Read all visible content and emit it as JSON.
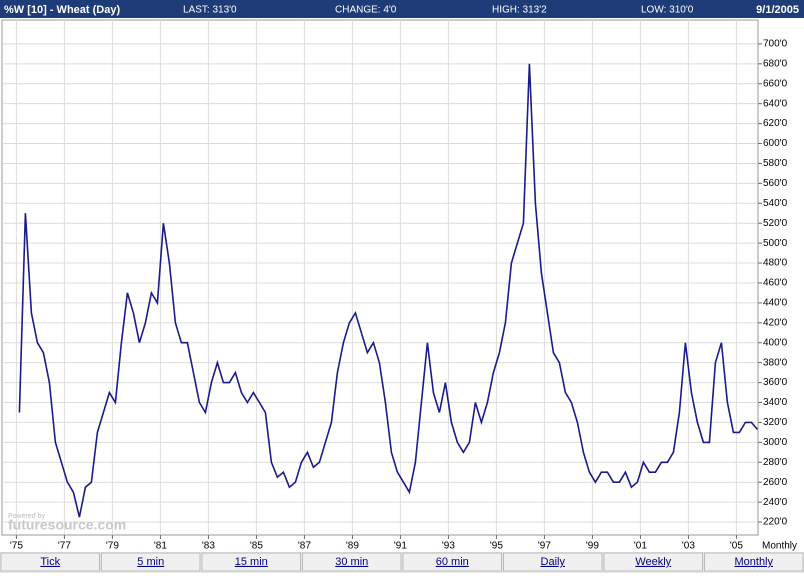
{
  "header": {
    "symbol": "%W [10] - Wheat (Day)",
    "last": "LAST: 313'0",
    "change": "CHANGE: 4'0",
    "high": "HIGH: 313'2",
    "low": "LOW: 310'0",
    "date": "9/1/2005"
  },
  "toolbar": {
    "buttons": [
      "Tick",
      "5 min",
      "15 min",
      "30 min",
      "60 min",
      "Daily",
      "Weekly",
      "Monthly"
    ]
  },
  "watermark": {
    "powered": "Powered by",
    "brand": "futuresource.com"
  },
  "chart_data": {
    "type": "line",
    "period_label": "Monthly",
    "grid": true,
    "y_axis_side": "right",
    "xlim": [
      1974.4,
      2005.9
    ],
    "ylim": [
      207,
      724
    ],
    "xticks": [
      {
        "value": 1975,
        "label": "'75"
      },
      {
        "value": 1977,
        "label": "'77"
      },
      {
        "value": 1979,
        "label": "'79"
      },
      {
        "value": 1981,
        "label": "'81"
      },
      {
        "value": 1983,
        "label": "'83"
      },
      {
        "value": 1985,
        "label": "'85"
      },
      {
        "value": 1987,
        "label": "'87"
      },
      {
        "value": 1989,
        "label": "'89"
      },
      {
        "value": 1991,
        "label": "'91"
      },
      {
        "value": 1993,
        "label": "'93"
      },
      {
        "value": 1995,
        "label": "'95"
      },
      {
        "value": 1997,
        "label": "'97"
      },
      {
        "value": 1999,
        "label": "'99"
      },
      {
        "value": 2001,
        "label": "'01"
      },
      {
        "value": 2003,
        "label": "'03"
      },
      {
        "value": 2005,
        "label": "'05"
      }
    ],
    "yticks": [
      {
        "value": 220,
        "label": "220'0"
      },
      {
        "value": 240,
        "label": "240'0"
      },
      {
        "value": 260,
        "label": "260'0"
      },
      {
        "value": 280,
        "label": "280'0"
      },
      {
        "value": 300,
        "label": "300'0"
      },
      {
        "value": 320,
        "label": "320'0"
      },
      {
        "value": 340,
        "label": "340'0"
      },
      {
        "value": 360,
        "label": "360'0"
      },
      {
        "value": 380,
        "label": "380'0"
      },
      {
        "value": 400,
        "label": "400'0"
      },
      {
        "value": 420,
        "label": "420'0"
      },
      {
        "value": 440,
        "label": "440'0"
      },
      {
        "value": 460,
        "label": "460'0"
      },
      {
        "value": 480,
        "label": "480'0"
      },
      {
        "value": 500,
        "label": "500'0"
      },
      {
        "value": 520,
        "label": "520'0"
      },
      {
        "value": 540,
        "label": "540'0"
      },
      {
        "value": 560,
        "label": "560'0"
      },
      {
        "value": 580,
        "label": "580'0"
      },
      {
        "value": 600,
        "label": "600'0"
      },
      {
        "value": 620,
        "label": "620'0"
      },
      {
        "value": 640,
        "label": "640'0"
      },
      {
        "value": 660,
        "label": "660'0"
      },
      {
        "value": 680,
        "label": "680'0"
      },
      {
        "value": 700,
        "label": "700'0"
      }
    ],
    "series": [
      {
        "name": "Wheat",
        "color": "#1a1a8c",
        "x": [
          1975.125,
          1975.375,
          1975.625,
          1975.875,
          1976.125,
          1976.375,
          1976.625,
          1976.875,
          1977.125,
          1977.375,
          1977.625,
          1977.875,
          1978.125,
          1978.375,
          1978.625,
          1978.875,
          1979.125,
          1979.375,
          1979.625,
          1979.875,
          1980.125,
          1980.375,
          1980.625,
          1980.875,
          1981.125,
          1981.375,
          1981.625,
          1981.875,
          1982.125,
          1982.375,
          1982.625,
          1982.875,
          1983.125,
          1983.375,
          1983.625,
          1983.875,
          1984.125,
          1984.375,
          1984.625,
          1984.875,
          1985.125,
          1985.375,
          1985.625,
          1985.875,
          1986.125,
          1986.375,
          1986.625,
          1986.875,
          1987.125,
          1987.375,
          1987.625,
          1987.875,
          1988.125,
          1988.375,
          1988.625,
          1988.875,
          1989.125,
          1989.375,
          1989.625,
          1989.875,
          1990.125,
          1990.375,
          1990.625,
          1990.875,
          1991.125,
          1991.375,
          1991.625,
          1991.875,
          1992.125,
          1992.375,
          1992.625,
          1992.875,
          1993.125,
          1993.375,
          1993.625,
          1993.875,
          1994.125,
          1994.375,
          1994.625,
          1994.875,
          1995.125,
          1995.375,
          1995.625,
          1995.875,
          1996.125,
          1996.375,
          1996.625,
          1996.875,
          1997.125,
          1997.375,
          1997.625,
          1997.875,
          1998.125,
          1998.375,
          1998.625,
          1998.875,
          1999.125,
          1999.375,
          1999.625,
          1999.875,
          2000.125,
          2000.375,
          2000.625,
          2000.875,
          2001.125,
          2001.375,
          2001.625,
          2001.875,
          2002.125,
          2002.375,
          2002.625,
          2002.875,
          2003.125,
          2003.375,
          2003.625,
          2003.875,
          2004.125,
          2004.375,
          2004.625,
          2004.875,
          2005.125,
          2005.375,
          2005.625,
          2005.875
        ],
        "values": [
          330,
          530,
          430,
          400,
          390,
          360,
          300,
          280,
          260,
          250,
          225,
          255,
          260,
          310,
          330,
          350,
          340,
          400,
          450,
          430,
          400,
          420,
          450,
          440,
          520,
          480,
          420,
          400,
          400,
          370,
          340,
          330,
          360,
          380,
          360,
          360,
          370,
          350,
          340,
          350,
          340,
          330,
          280,
          265,
          270,
          255,
          260,
          280,
          290,
          275,
          280,
          300,
          320,
          370,
          400,
          420,
          430,
          410,
          390,
          400,
          380,
          340,
          290,
          270,
          260,
          250,
          280,
          340,
          400,
          350,
          330,
          360,
          320,
          300,
          290,
          300,
          340,
          320,
          340,
          370,
          390,
          420,
          480,
          500,
          520,
          680,
          540,
          470,
          430,
          390,
          380,
          350,
          340,
          320,
          290,
          270,
          260,
          270,
          270,
          260,
          260,
          270,
          255,
          260,
          280,
          270,
          270,
          280,
          280,
          290,
          330,
          400,
          350,
          320,
          300,
          300,
          380,
          400,
          340,
          310,
          310,
          320,
          320,
          313
        ]
      }
    ]
  }
}
